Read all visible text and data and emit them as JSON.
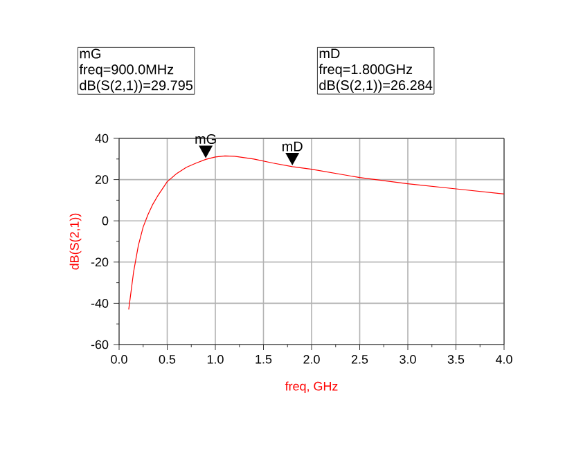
{
  "chart_data": {
    "type": "line",
    "xlabel": "freq, GHz",
    "ylabel": "dB(S(2,1))",
    "x": [
      0.1,
      0.15,
      0.2,
      0.25,
      0.3,
      0.35,
      0.4,
      0.5,
      0.6,
      0.7,
      0.8,
      0.9,
      1.0,
      1.1,
      1.2,
      1.4,
      1.6,
      1.8,
      2.0,
      2.5,
      3.0,
      3.5,
      4.0
    ],
    "series": [
      {
        "color": "#ff0000",
        "values": [
          -43,
          -25,
          -12,
          -3,
          3,
          8,
          12,
          19,
          23,
          26,
          28,
          29.8,
          31,
          31.5,
          31.3,
          30,
          28,
          26.3,
          25,
          21,
          18,
          15.5,
          13
        ]
      }
    ],
    "xlim": [
      0,
      4
    ],
    "xticks": [
      {
        "value": 0,
        "label": "0.0"
      },
      0.5,
      {
        "value": 1,
        "label": "1.0"
      },
      1.5,
      {
        "value": 2,
        "label": "2.0"
      },
      2.5,
      {
        "value": 3,
        "label": "3.0"
      },
      3.5,
      {
        "value": 4,
        "label": "4.0"
      }
    ],
    "ylim": [
      -60,
      40
    ],
    "yticks": [
      -60,
      -40,
      -20,
      0,
      20,
      40
    ],
    "grid": true,
    "marker": "none",
    "line_style": "solid",
    "annotations": [
      {
        "text": "mG",
        "x": 0.9,
        "y": 29.795
      },
      {
        "text": "mD",
        "x": 1.8,
        "y": 26.284
      },
      "mG",
      "freq=900.0MHz",
      "dB(S(2,1))=29.795",
      "mD",
      "freq=1.800GHz",
      "dB(S(2,1))=26.284"
    ]
  }
}
